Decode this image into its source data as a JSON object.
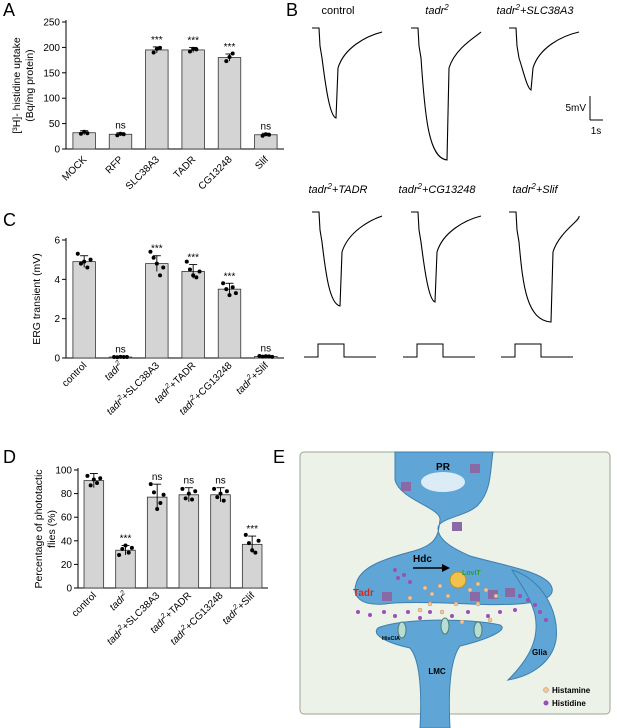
{
  "panels": {
    "A": {
      "letter": "A"
    },
    "B": {
      "letter": "B"
    },
    "C": {
      "letter": "C"
    },
    "D": {
      "letter": "D"
    },
    "E": {
      "letter": "E"
    }
  },
  "chart_data": [
    {
      "panel": "A",
      "type": "bar",
      "ylabel": "[³H]- histidine uptake (Bq/mg protein)",
      "ylabel_line1": "[³H]- histidine uptake",
      "ylabel_line2": "(Bq/mg protein)",
      "ylim": [
        0,
        250
      ],
      "yticks": [
        0,
        50,
        100,
        150,
        200,
        250
      ],
      "categories": [
        "MOCK",
        "RFP",
        "SLC38A3",
        "TADR",
        "CG13248",
        "Slif"
      ],
      "values": [
        32,
        29,
        195,
        195,
        180,
        28
      ],
      "errors": [
        4,
        3,
        6,
        5,
        7,
        3
      ],
      "significance": [
        "",
        "ns",
        "***",
        "***",
        "***",
        "ns"
      ],
      "points": [
        [
          30,
          34,
          31
        ],
        [
          27,
          30,
          29
        ],
        [
          190,
          197,
          199
        ],
        [
          192,
          197,
          196
        ],
        [
          173,
          181,
          188
        ],
        [
          26,
          29,
          28
        ]
      ]
    },
    {
      "panel": "C",
      "type": "bar",
      "ylabel": "ERG transient (mV)",
      "ylim": [
        0,
        6
      ],
      "yticks": [
        0,
        2,
        4,
        6
      ],
      "categories": [
        "control",
        "tadr²",
        "tadr²+SLC38A3",
        "tadr²+TADR",
        "tadr²+CG13248",
        "tadr²+Slif"
      ],
      "category_parts": [
        {
          "pre": "control",
          "it": "",
          "sup": "",
          "post": ""
        },
        {
          "pre": "",
          "it": "tadr",
          "sup": "2",
          "post": ""
        },
        {
          "pre": "",
          "it": "tadr",
          "sup": "2",
          "post": "+SLC38A3"
        },
        {
          "pre": "",
          "it": "tadr",
          "sup": "2",
          "post": "+TADR"
        },
        {
          "pre": "",
          "it": "tadr",
          "sup": "2",
          "post": "+CG13248"
        },
        {
          "pre": "",
          "it": "tadr",
          "sup": "2",
          "post": "+Slif"
        }
      ],
      "values": [
        4.9,
        0.05,
        4.8,
        4.4,
        3.5,
        0.08
      ],
      "errors": [
        0.3,
        0.03,
        0.4,
        0.35,
        0.3,
        0.04
      ],
      "significance": [
        "",
        "ns",
        "***",
        "***",
        "***",
        "ns"
      ],
      "points": [
        [
          5.3,
          4.8,
          4.9,
          4.6,
          5.0
        ],
        [
          0.05,
          0.04,
          0.06,
          0.05,
          0.05
        ],
        [
          5.4,
          5.1,
          4.8,
          4.2,
          4.6
        ],
        [
          4.9,
          4.5,
          4.2,
          4.1,
          4.4
        ],
        [
          3.8,
          3.5,
          3.2,
          3.6,
          3.3
        ],
        [
          0.1,
          0.07,
          0.09,
          0.08,
          0.06
        ]
      ]
    },
    {
      "panel": "D",
      "type": "bar",
      "ylabel": "Percentage of phototactic flies (%)",
      "ylabel_line1": "Percentage of phototactic",
      "ylabel_line2": "flies (%)",
      "ylim": [
        0,
        100
      ],
      "yticks": [
        0,
        20,
        40,
        60,
        80,
        100
      ],
      "categories": [
        "control",
        "tadr²",
        "tadr²+SLC38A3",
        "tadr²+TADR",
        "tadr²+CG13248",
        "tadr²+Slif"
      ],
      "category_parts": [
        {
          "pre": "control",
          "it": "",
          "sup": "",
          "post": ""
        },
        {
          "pre": "",
          "it": "tadr",
          "sup": "2",
          "post": ""
        },
        {
          "pre": "",
          "it": "tadr",
          "sup": "2",
          "post": "+SLC38A3"
        },
        {
          "pre": "",
          "it": "tadr",
          "sup": "2",
          "post": "+TADR"
        },
        {
          "pre": "",
          "it": "tadr",
          "sup": "2",
          "post": "+CG13248"
        },
        {
          "pre": "",
          "it": "tadr",
          "sup": "2",
          "post": "+Slif"
        }
      ],
      "values": [
        91,
        32,
        77,
        79,
        79,
        37
      ],
      "errors": [
        6,
        4,
        11,
        6,
        6,
        7
      ],
      "significance": [
        "",
        "***",
        "ns",
        "ns",
        "ns",
        "***"
      ],
      "points": [
        [
          95,
          87,
          92,
          89,
          93
        ],
        [
          28,
          33,
          36,
          30,
          34
        ],
        [
          88,
          81,
          67,
          72,
          79
        ],
        [
          84,
          76,
          80,
          75,
          82
        ],
        [
          84,
          77,
          80,
          74,
          82
        ],
        [
          45,
          38,
          32,
          30,
          40
        ]
      ]
    }
  ],
  "traces": {
    "titles": [
      {
        "it": "",
        "sup": "",
        "post": "control"
      },
      {
        "it": "tadr",
        "sup": "2",
        "post": ""
      },
      {
        "it": "tadr",
        "sup": "2",
        "post": "+SLC38A3"
      },
      {
        "it": "tadr",
        "sup": "2",
        "post": "+TADR"
      },
      {
        "it": "tadr",
        "sup": "2",
        "post": "+CG13248"
      },
      {
        "it": "tadr",
        "sup": "2",
        "post": "+Slif"
      }
    ],
    "scale_voltage": "5mV",
    "scale_time": "1s"
  },
  "diagram": {
    "pr_label": "PR",
    "hdc_label": "Hdc",
    "loviT_label": "LoviT",
    "tadr_label": "Tadr",
    "glia_label": "Glia",
    "hiscla_label": "HisClA",
    "lmc_label": "LMC",
    "legend_histamine": "Histamine",
    "legend_histidine": "Histidine",
    "colors": {
      "background": "#edf2e8",
      "cell": "#5fa6d6",
      "histamine": "#f2c79a",
      "histidine": "#9b4fb8",
      "transporter": "#8a6aa6",
      "tadr_label": "#d42a1f",
      "loviT_label": "#2e9a3e"
    }
  }
}
